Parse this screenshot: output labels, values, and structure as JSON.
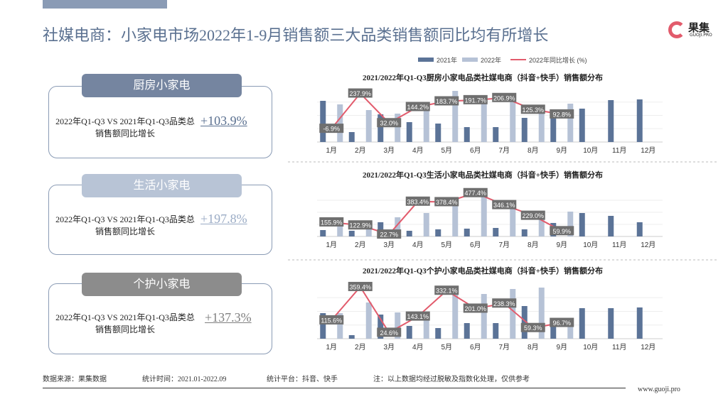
{
  "header": {
    "title": "社媒电商：小家电市场2022年1-9月销售额三大品类销售额同比均有所增长",
    "logo": "果集",
    "logo_sub": "GUOJI.PRO"
  },
  "panels": [
    {
      "title": "厨房小家电",
      "desc": "2022年Q1-Q3 VS 2021年Q1-Q3品类总销售额同比增长",
      "value": "+103.9%"
    },
    {
      "title": "生活小家电",
      "desc": "2022年Q1-Q3 VS 2021年Q1-Q3品类总销售额同比增长",
      "value": "+197.8%"
    },
    {
      "title": "个护小家电",
      "desc": "2022年Q1-Q3 VS 2021年Q1-Q3品类总销售额同比增长",
      "value": "+137.3%"
    }
  ],
  "chart_data": [
    {
      "type": "bar",
      "title": "2021/2022年Q1-Q3厨房小家电品类社媒电商（抖音+快手）销售额分布",
      "categories": [
        "1月",
        "2月",
        "3月",
        "4月",
        "5月",
        "6月",
        "7月",
        "8月",
        "9月",
        "10月",
        "11月",
        "12月"
      ],
      "ylim": [
        0,
        75
      ],
      "y2lim": [
        -100,
        270
      ],
      "series": [
        {
          "name": "2021年",
          "color": "#5b7397",
          "values": [
            58,
            14,
            39,
            28,
            26,
            21,
            21,
            34,
            45,
            47,
            59,
            60
          ]
        },
        {
          "name": "2022年",
          "color": "#b6c2d6",
          "values": [
            53,
            45,
            40,
            54,
            72,
            63,
            63,
            50,
            54,
            null,
            null,
            null
          ]
        },
        {
          "name": "2022年同比增长 (%)",
          "color": "#e25b6c",
          "axis": "y2",
          "values": [
            -6.9,
            237.9,
            32,
            144.2,
            183.7,
            191.7,
            206.9,
            125.3,
            92.8,
            null,
            null,
            null
          ],
          "value_labels": [
            "-6.9%",
            "237.9%",
            "32.0%",
            "144.2%",
            "183.7%",
            "191.7%",
            "206.9%",
            "125.3%",
            "92.8%",
            null,
            null,
            null
          ]
        }
      ]
    },
    {
      "type": "bar",
      "title": "2021/2022年Q1-Q3生活小家电品类社媒电商（抖音+快手）销售额分布",
      "categories": [
        "1月",
        "2月",
        "3月",
        "4月",
        "5月",
        "6月",
        "7月",
        "8月",
        "9月",
        "10月",
        "11月",
        "12月"
      ],
      "ylim": [
        0,
        68
      ],
      "y2lim": [
        0,
        530
      ],
      "series": [
        {
          "color": "#5b7397",
          "values": [
            9,
            8,
            20,
            8,
            10,
            11,
            12,
            10,
            19,
            33,
            29,
            20
          ]
        },
        {
          "color": "#b6c2d6",
          "values": [
            26,
            20,
            27,
            33,
            50,
            63,
            42,
            25,
            35,
            null,
            null,
            null
          ]
        },
        {
          "color": "#e25b6c",
          "axis": "y2",
          "values": [
            155.9,
            122.9,
            22.7,
            383.4,
            378.4,
            477.4,
            346.1,
            229,
            59.9,
            null,
            null,
            null
          ],
          "value_labels": [
            "155.9%",
            "122.9%",
            "22.7%",
            "383.4%",
            "378.4%",
            "477.4%",
            "346.1%",
            "229.0%",
            "59.9%",
            null,
            null,
            null
          ]
        }
      ]
    },
    {
      "type": "bar",
      "title": "2021/2022年Q1-Q3个护小家电品类社媒电商（抖音+快手）销售额分布",
      "categories": [
        "1月",
        "2月",
        "3月",
        "4月",
        "5月",
        "6月",
        "7月",
        "8月",
        "9月",
        "10月",
        "11月",
        "12月"
      ],
      "ylim": [
        0,
        77
      ],
      "y2lim": [
        -20,
        380
      ],
      "series": [
        {
          "color": "#5b7397",
          "values": [
            36,
            5,
            34,
            18,
            15,
            22,
            22,
            46,
            28,
            43,
            43,
            44
          ]
        },
        {
          "color": "#b6c2d6",
          "values": [
            36,
            51,
            37,
            37,
            64,
            63,
            70,
            72,
            29,
            null,
            null,
            null
          ]
        },
        {
          "color": "#e25b6c",
          "axis": "y2",
          "values": [
            115.6,
            359.4,
            24.6,
            143.1,
            332.1,
            201,
            238.3,
            59.3,
            96.7,
            null,
            null,
            null
          ],
          "value_labels": [
            "115.6%",
            "359.4%",
            "24.6%",
            "143.1%",
            "332.1%",
            "201.0%",
            "238.3%",
            "59.3%",
            "96.7%",
            null,
            null,
            null
          ]
        }
      ]
    }
  ],
  "footer": {
    "source": "数据来源：果集数据",
    "period": "统计时间：2021.01-2022.09",
    "platform": "统计平台：抖音、快手",
    "note": "注：以上数据均经过脱敏及指数化处理，仅供参考",
    "url": "www.guoji.pro"
  }
}
